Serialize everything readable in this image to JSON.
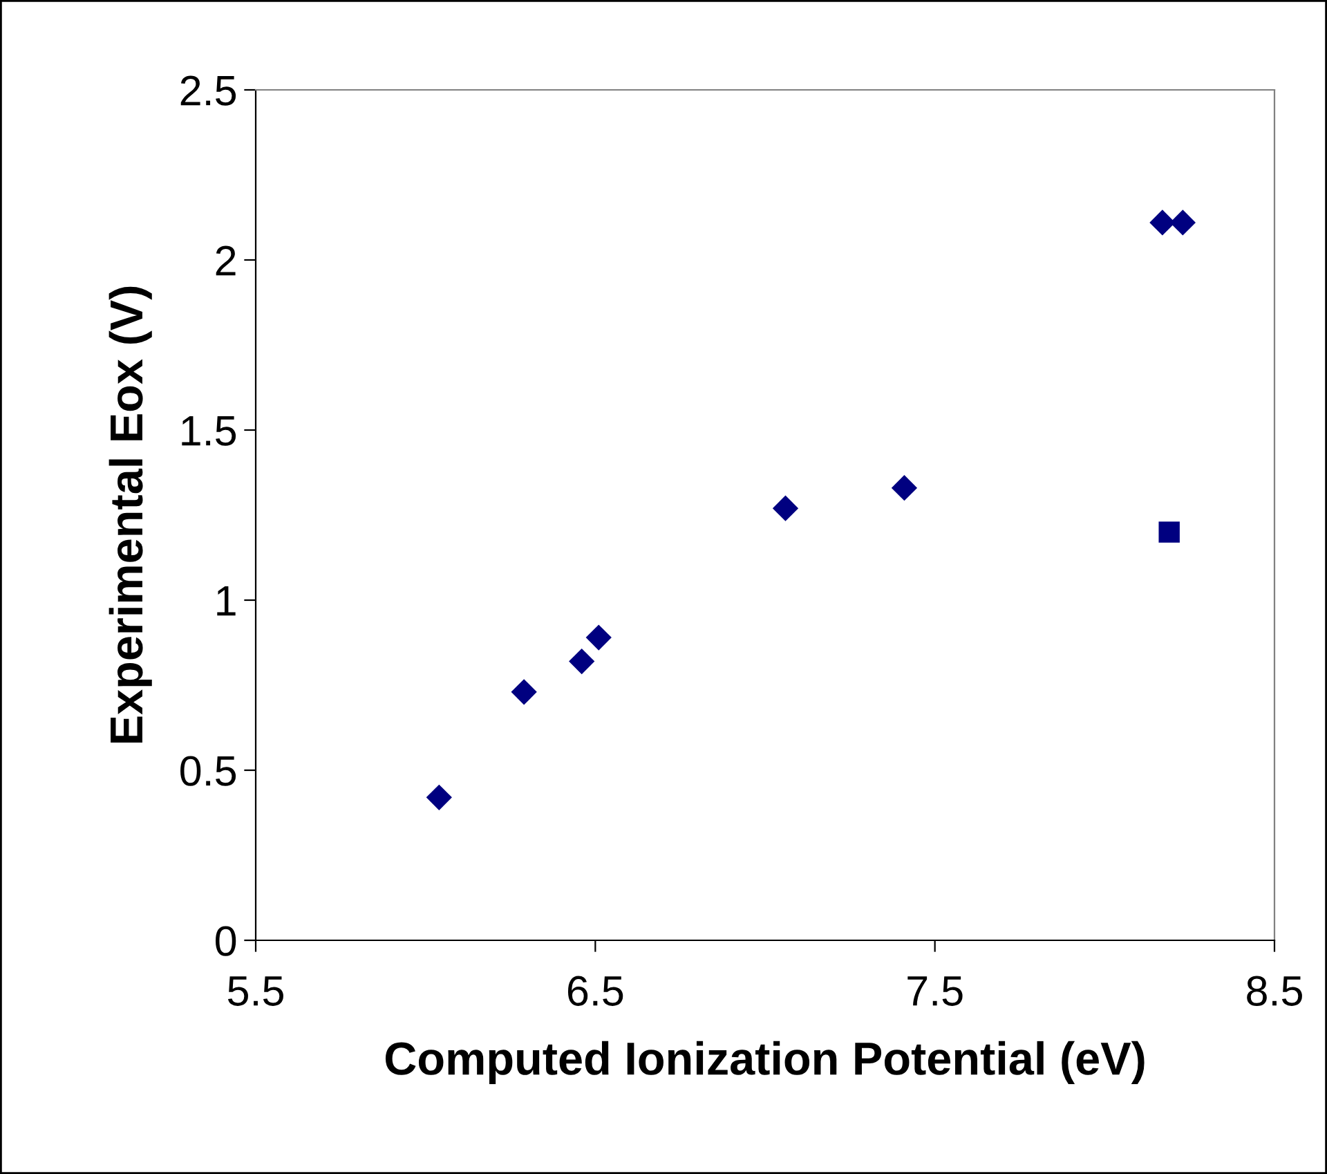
{
  "chart_data": {
    "type": "scatter",
    "xlabel": "Computed Ionization Potential (eV)",
    "ylabel": "Experimental Eox (V)",
    "series": [
      {
        "color": "#000080",
        "marker": "diamond",
        "x": [
          6.04,
          6.29,
          6.46,
          6.51,
          7.06,
          7.41,
          8.17,
          8.23
        ],
        "values": [
          0.42,
          0.73,
          0.82,
          0.89,
          1.27,
          1.33,
          2.11,
          2.11
        ]
      },
      {
        "color": "#000080",
        "marker": "square",
        "x": [
          8.19
        ],
        "values": [
          1.2
        ]
      }
    ],
    "xlim": [
      5.5,
      8.5
    ],
    "xticks": [
      5.5,
      6.5,
      7.5,
      8.5
    ],
    "ylim": [
      0,
      2.5
    ],
    "yticks": [
      0,
      0.5,
      1,
      1.5,
      2,
      2.5
    ],
    "grid": false,
    "legend": false
  }
}
